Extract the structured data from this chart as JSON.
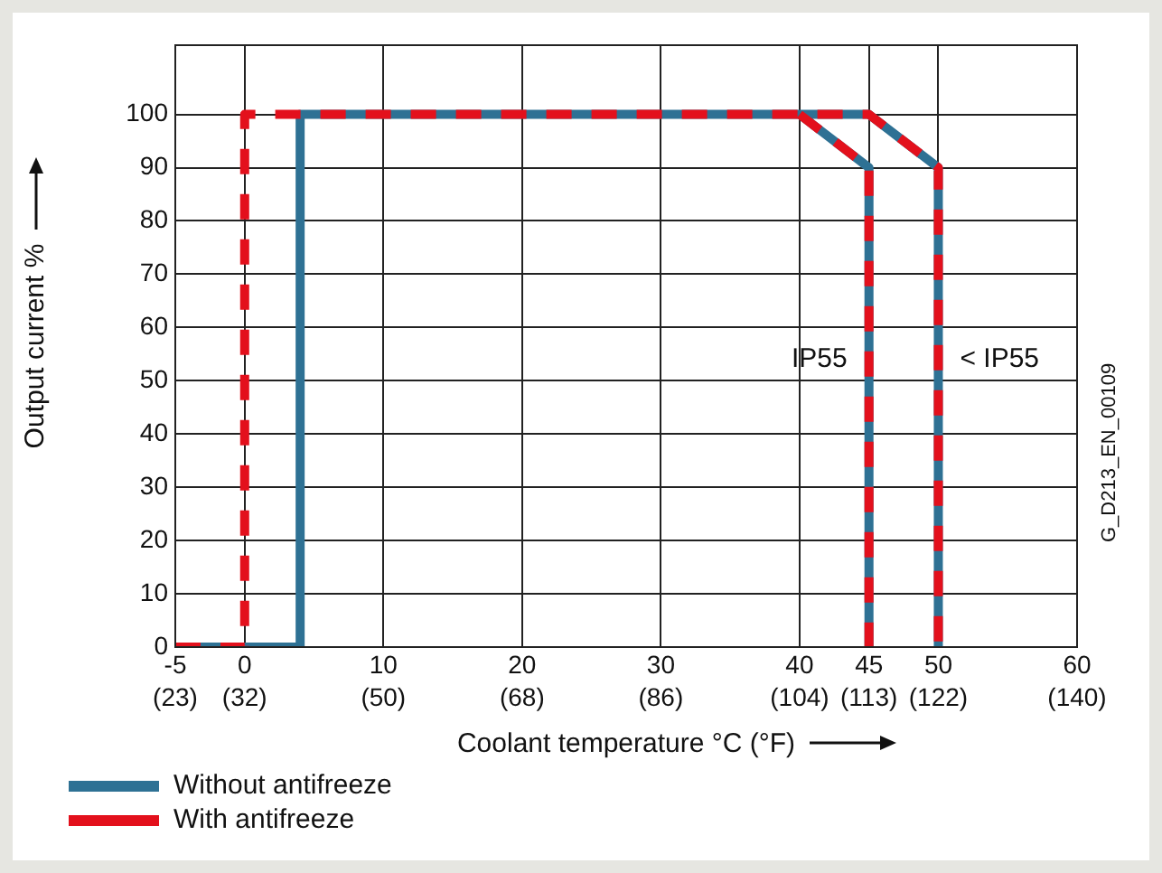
{
  "chart_data": {
    "type": "line",
    "xlabel": "Coolant temperature °C (°F)",
    "ylabel": "Output current %",
    "xlim": [
      -5,
      60
    ],
    "ylim": [
      0,
      113
    ],
    "xticks": [
      -5,
      0,
      10,
      20,
      30,
      40,
      45,
      50,
      60
    ],
    "x2lim": [
      23,
      140
    ],
    "x2ticks": [
      {
        "value": 23,
        "label": "(23)"
      },
      {
        "value": 32,
        "label": "(32)"
      },
      {
        "value": 50,
        "label": "(50)"
      },
      {
        "value": 68,
        "label": "(68)"
      },
      {
        "value": 86,
        "label": "(86)"
      },
      {
        "value": 104,
        "label": "(104)"
      },
      {
        "value": 113,
        "label": "(113)"
      },
      {
        "value": 122,
        "label": "(122)"
      },
      {
        "value": 140,
        "label": "(140)"
      }
    ],
    "yticks": [
      0,
      10,
      20,
      30,
      40,
      50,
      60,
      70,
      80,
      90,
      100
    ],
    "grid": true,
    "legend": "bottom left",
    "marker": "none",
    "series": [
      {
        "name": "Without antifreeze",
        "color": "#2e7194",
        "line_style": "solid",
        "x": [
          -5,
          4,
          4,
          45,
          50,
          50,
          45,
          40,
          45,
          45
        ],
        "values": [
          0,
          0,
          100,
          100,
          90,
          0,
          null,
          100,
          90,
          0
        ]
      },
      {
        "name": "With antifreeze",
        "color": "#e3101c",
        "line_style": "dashed",
        "x": [
          -5,
          0,
          0,
          45,
          50,
          50,
          45,
          40,
          45,
          45
        ],
        "values": [
          0,
          0,
          100,
          100,
          90,
          0,
          null,
          100,
          90,
          0
        ]
      }
    ],
    "annotations": [
      {
        "text": "IP55",
        "x": 45,
        "y": 54
      },
      {
        "text": "< IP55",
        "x": 50,
        "y": 54
      },
      "G_D213_EN_00109"
    ]
  }
}
